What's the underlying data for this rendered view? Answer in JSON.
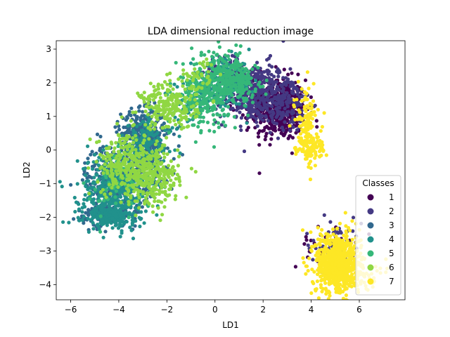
{
  "chart_data": {
    "type": "scatter",
    "title": "LDA dimensional reduction image",
    "xlabel": "LD1",
    "ylabel": "LD2",
    "xlim": [
      -6.6,
      7.9
    ],
    "ylim": [
      -4.45,
      3.25
    ],
    "xticks": [
      -6,
      -4,
      -2,
      0,
      2,
      4,
      6
    ],
    "yticks": [
      -4,
      -3,
      -2,
      -1,
      0,
      1,
      2,
      3
    ],
    "xtick_labels": [
      "−6",
      "−4",
      "−2",
      "0",
      "2",
      "4",
      "6"
    ],
    "ytick_labels": [
      "−4",
      "−3",
      "−2",
      "−1",
      "0",
      "1",
      "2",
      "3"
    ],
    "grid": false,
    "legend": {
      "title": "Classes",
      "placement": "lower-right"
    },
    "series": [
      {
        "name": "1",
        "color": "#440154",
        "clusters": [
          {
            "cx": 2.7,
            "cy": 1.2,
            "sx": 0.55,
            "sy": 0.45,
            "n": 420
          },
          {
            "cx": 1.8,
            "cy": 1.6,
            "sx": 0.5,
            "sy": 0.4,
            "n": 120
          },
          {
            "cx": 4.6,
            "cy": -2.9,
            "sx": 0.6,
            "sy": 0.3,
            "n": 35
          }
        ]
      },
      {
        "name": "2",
        "color": "#443983",
        "clusters": [
          {
            "cx": 1.6,
            "cy": 1.7,
            "sx": 0.75,
            "sy": 0.45,
            "n": 380
          },
          {
            "cx": 2.9,
            "cy": 1.4,
            "sx": 0.55,
            "sy": 0.45,
            "n": 140
          },
          {
            "cx": 0.4,
            "cy": 2.3,
            "sx": 0.45,
            "sy": 0.3,
            "n": 80
          },
          {
            "cx": 4.9,
            "cy": -2.8,
            "sx": 0.6,
            "sy": 0.4,
            "n": 60
          }
        ]
      },
      {
        "name": "3",
        "color": "#31688e",
        "clusters": [
          {
            "cx": -3.0,
            "cy": 0.5,
            "sx": 0.45,
            "sy": 0.35,
            "n": 330
          },
          {
            "cx": -4.2,
            "cy": -0.9,
            "sx": 0.6,
            "sy": 0.55,
            "n": 320
          },
          {
            "cx": -4.6,
            "cy": -1.9,
            "sx": 0.55,
            "sy": 0.18,
            "n": 110
          },
          {
            "cx": -2.6,
            "cy": -0.4,
            "sx": 0.45,
            "sy": 0.45,
            "n": 120
          }
        ]
      },
      {
        "name": "4",
        "color": "#21918c",
        "clusters": [
          {
            "cx": -4.2,
            "cy": -1.2,
            "sx": 0.7,
            "sy": 0.55,
            "n": 380
          },
          {
            "cx": -4.3,
            "cy": -1.95,
            "sx": 0.55,
            "sy": 0.15,
            "n": 170
          },
          {
            "cx": -2.8,
            "cy": 0.2,
            "sx": 0.55,
            "sy": 0.4,
            "n": 140
          },
          {
            "cx": 0.5,
            "cy": 2.0,
            "sx": 0.5,
            "sy": 0.35,
            "n": 150
          },
          {
            "cx": -1.0,
            "cy": 1.4,
            "sx": 0.4,
            "sy": 0.3,
            "n": 60
          }
        ]
      },
      {
        "name": "5",
        "color": "#35b779",
        "clusters": [
          {
            "cx": 0.3,
            "cy": 2.1,
            "sx": 0.65,
            "sy": 0.4,
            "n": 270
          },
          {
            "cx": -0.6,
            "cy": 1.5,
            "sx": 0.55,
            "sy": 0.4,
            "n": 170
          },
          {
            "cx": 1.1,
            "cy": 2.0,
            "sx": 0.4,
            "sy": 0.3,
            "n": 80
          },
          {
            "cx": -4.0,
            "cy": -1.1,
            "sx": 0.6,
            "sy": 0.5,
            "n": 60
          }
        ]
      },
      {
        "name": "6",
        "color": "#90d743",
        "clusters": [
          {
            "cx": -1.9,
            "cy": 1.3,
            "sx": 0.6,
            "sy": 0.35,
            "n": 220
          },
          {
            "cx": -2.6,
            "cy": -0.8,
            "sx": 0.55,
            "sy": 0.45,
            "n": 280
          },
          {
            "cx": -3.8,
            "cy": -0.4,
            "sx": 0.55,
            "sy": 0.45,
            "n": 220
          },
          {
            "cx": -0.7,
            "cy": 2.2,
            "sx": 0.4,
            "sy": 0.25,
            "n": 50
          }
        ]
      },
      {
        "name": "7",
        "color": "#fde725",
        "clusters": [
          {
            "cx": 5.1,
            "cy": -3.35,
            "sx": 0.45,
            "sy": 0.45,
            "n": 720
          },
          {
            "cx": 5.6,
            "cy": -3.7,
            "sx": 0.55,
            "sy": 0.25,
            "n": 120
          },
          {
            "cx": 3.8,
            "cy": 0.7,
            "sx": 0.25,
            "sy": 0.55,
            "n": 160
          },
          {
            "cx": 4.1,
            "cy": 0.05,
            "sx": 0.25,
            "sy": 0.15,
            "n": 40
          }
        ]
      }
    ]
  }
}
